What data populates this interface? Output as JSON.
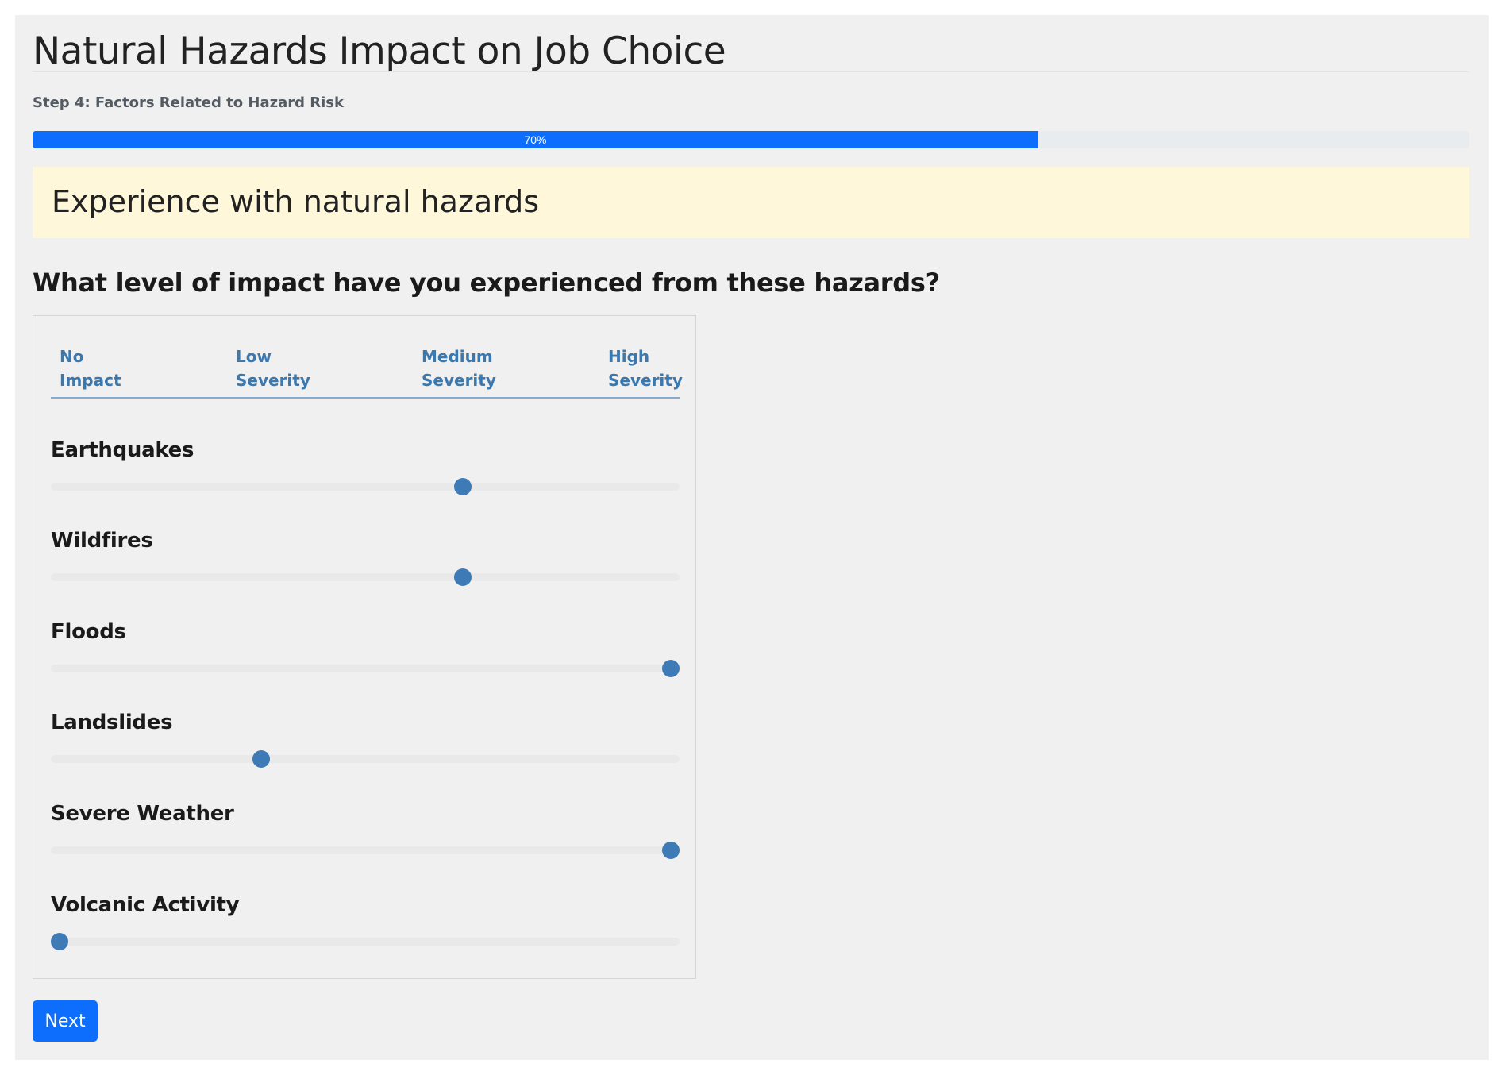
{
  "page": {
    "title": "Natural Hazards Impact on Job Choice",
    "step": "Step 4: Factors Related to Hazard Risk"
  },
  "progress": {
    "value": 0.7,
    "label": "70%"
  },
  "section": {
    "title": "Experience with natural hazards"
  },
  "question": "What level of impact have you experienced from these hazards?",
  "scale": [
    {
      "line1": "No",
      "line2": "Impact"
    },
    {
      "line1": "Low",
      "line2": "Severity"
    },
    {
      "line1": "Medium",
      "line2": "Severity"
    },
    {
      "line1": "High",
      "line2": "Severity"
    }
  ],
  "hazards": [
    {
      "name": "Earthquakes",
      "level": 0.66
    },
    {
      "name": "Wildfires",
      "level": 0.66
    },
    {
      "name": "Floods",
      "level": 1.0
    },
    {
      "name": "Landslides",
      "level": 0.33
    },
    {
      "name": "Severe Weather",
      "level": 1.0
    },
    {
      "name": "Volcanic Activity",
      "level": 0.0
    }
  ],
  "buttons": {
    "next": "Next"
  },
  "colors": {
    "primary": "#0d6efd",
    "slider_thumb": "#3e7ab5",
    "banner_bg": "#fff7d9",
    "scale_label": "#3a78b0"
  }
}
